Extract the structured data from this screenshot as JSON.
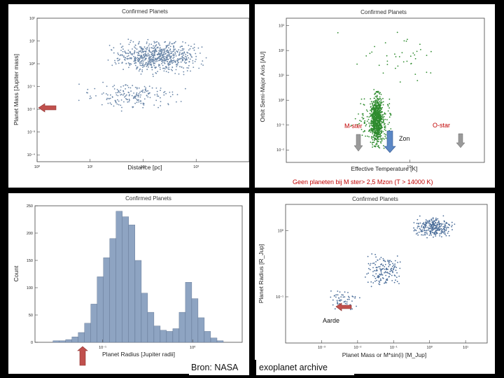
{
  "source": {
    "prefix": "Bron: NASA",
    "suffix": "exoplanet archive"
  },
  "chart_data": [
    {
      "type": "scatter",
      "title": "Confirmed Planets",
      "xlabel": "Distance [pc]",
      "ylabel": "Planet Mass [Jupiter mass]",
      "xscale": "log",
      "yscale": "log",
      "xlim": [
        1,
        10000
      ],
      "ylim": [
        5e-05,
        100
      ],
      "x_ticks": [
        "10⁰",
        "10¹",
        "10²",
        "10³"
      ],
      "y_ticks": [
        "10²",
        "10¹",
        "10⁰",
        "10⁻¹",
        "10⁻²",
        "10⁻³",
        "10⁻⁴"
      ],
      "point_color": "#6a86a8",
      "clusters": [
        {
          "name": "massive",
          "x_log_range": [
            1.2,
            3.3
          ],
          "y_log_range": [
            -0.6,
            1.2
          ],
          "n": 700
        },
        {
          "name": "low-mass",
          "x_log_range": [
            0.6,
            3.0
          ],
          "y_log_range": [
            -2.2,
            -0.6
          ],
          "n": 180
        }
      ],
      "annotation": {
        "type": "arrow",
        "direction": "left",
        "color": "#c0504d",
        "at_y": 0.02
      }
    },
    {
      "type": "scatter",
      "title": "Confirmed Planets",
      "xlabel": "Effective Temperature [K]",
      "ylabel": "Orbit Semi-Major Axis [AU]",
      "xscale": "log",
      "yscale": "log",
      "x_ticks": [
        "10⁴"
      ],
      "y_ticks": [
        "10³",
        "10²",
        "10¹",
        "10⁰",
        "10⁻¹",
        "10⁻²"
      ],
      "point_color": "#2e8b2e",
      "clusters": [
        {
          "name": "main",
          "x_temp_range": [
            2800,
            7000
          ],
          "y_log_range": [
            -2.2,
            0.6
          ],
          "n": 900
        },
        {
          "name": "sparse",
          "x_temp_range": [
            2000,
            15000
          ],
          "y_log_range": [
            0.5,
            3.0
          ],
          "n": 40
        }
      ],
      "labels": {
        "m_star": "M-ster",
        "sun": "Zon",
        "o_star": "O-star"
      },
      "caption": "Geen planeten bij M ster> 2,5 Mzon (T > 14000 K)"
    },
    {
      "type": "bar",
      "title": "Confirmed Planets",
      "xlabel": "Planet Radius [Jupiter radii]",
      "ylabel": "Count",
      "xscale": "log",
      "y_ticks": [
        "0",
        "50",
        "100",
        "150",
        "200",
        "250"
      ],
      "x_ticks": [
        "10⁻¹",
        "10⁰"
      ],
      "ylim": [
        0,
        250
      ],
      "bar_color": "#8ea4c2",
      "log_left_edges": [
        -1.55,
        -1.48,
        -1.41,
        -1.34,
        -1.27,
        -1.2,
        -1.13,
        -1.06,
        -0.99,
        -0.92,
        -0.85,
        -0.78,
        -0.71,
        -0.64,
        -0.57,
        -0.5,
        -0.43,
        -0.36,
        -0.29,
        -0.22,
        -0.15,
        -0.08,
        -0.01,
        0.06,
        0.13,
        0.2,
        0.27
      ],
      "log_bin_width": 0.07,
      "values": [
        3,
        3,
        5,
        10,
        18,
        35,
        70,
        120,
        155,
        190,
        240,
        230,
        215,
        150,
        90,
        55,
        30,
        22,
        20,
        25,
        55,
        110,
        80,
        45,
        20,
        8,
        3
      ]
    },
    {
      "type": "scatter",
      "title": "Confirmed Planets",
      "xlabel": "Planet Mass or M*sin(i) [M_Jup]",
      "ylabel": "Planet Radius [R_Jup]",
      "xscale": "log",
      "yscale": "log",
      "x_ticks": [
        "10⁻³",
        "10⁻²",
        "10⁻¹",
        "10⁰",
        "10¹"
      ],
      "y_ticks": [
        "10⁰",
        "10⁻¹"
      ],
      "point_color": "#4a6d99",
      "clusters": [
        {
          "name": "hot-jupiters",
          "x_log_range": [
            -0.6,
            0.8
          ],
          "y_log_range": [
            -0.15,
            0.25
          ],
          "n": 260
        },
        {
          "name": "neptunes",
          "x_log_range": [
            -2.0,
            -0.5
          ],
          "y_log_range": [
            -0.9,
            -0.3
          ],
          "n": 150
        },
        {
          "name": "super-earths",
          "x_log_range": [
            -3.0,
            -1.8
          ],
          "y_log_range": [
            -1.3,
            -0.8
          ],
          "n": 60
        }
      ],
      "labels": {
        "earth": "Aarde"
      }
    }
  ]
}
